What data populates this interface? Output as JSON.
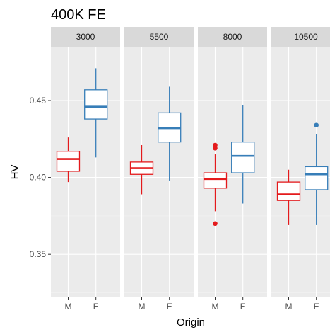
{
  "chart_data": {
    "type": "boxplot",
    "title": "400K FE",
    "xlabel": "Origin",
    "ylabel": "HV",
    "categories": [
      "M",
      "E"
    ],
    "ylim": [
      0.322,
      0.485
    ],
    "yticks": [
      0.35,
      0.4,
      0.45
    ],
    "ytick_labels": [
      "0.35",
      "0.40",
      "0.45"
    ],
    "grid": true,
    "colors": {
      "M": "#e41a1c",
      "E": "#377eb8"
    },
    "panel_bg": "#ebebeb",
    "strip_bg": "#d9d9d9",
    "facets": [
      {
        "label": "3000",
        "boxes": [
          {
            "origin": "M",
            "whisker_low": 0.397,
            "q1": 0.404,
            "median": 0.412,
            "q3": 0.417,
            "whisker_high": 0.426,
            "outliers": []
          },
          {
            "origin": "E",
            "whisker_low": 0.413,
            "q1": 0.438,
            "median": 0.446,
            "q3": 0.457,
            "whisker_high": 0.471,
            "outliers": []
          }
        ]
      },
      {
        "label": "5500",
        "boxes": [
          {
            "origin": "M",
            "whisker_low": 0.389,
            "q1": 0.402,
            "median": 0.406,
            "q3": 0.41,
            "whisker_high": 0.421,
            "outliers": []
          },
          {
            "origin": "E",
            "whisker_low": 0.398,
            "q1": 0.423,
            "median": 0.432,
            "q3": 0.442,
            "whisker_high": 0.459,
            "outliers": []
          }
        ]
      },
      {
        "label": "8000",
        "boxes": [
          {
            "origin": "M",
            "whisker_low": 0.378,
            "q1": 0.393,
            "median": 0.399,
            "q3": 0.403,
            "whisker_high": 0.415,
            "outliers": [
              0.37,
              0.419,
              0.421
            ]
          },
          {
            "origin": "E",
            "whisker_low": 0.383,
            "q1": 0.403,
            "median": 0.414,
            "q3": 0.423,
            "whisker_high": 0.447,
            "outliers": []
          }
        ]
      },
      {
        "label": "10500",
        "boxes": [
          {
            "origin": "M",
            "whisker_low": 0.369,
            "q1": 0.385,
            "median": 0.389,
            "q3": 0.397,
            "whisker_high": 0.405,
            "outliers": []
          },
          {
            "origin": "E",
            "whisker_low": 0.369,
            "q1": 0.392,
            "median": 0.402,
            "q3": 0.407,
            "whisker_high": 0.428,
            "outliers": [
              0.434
            ]
          }
        ]
      }
    ]
  }
}
